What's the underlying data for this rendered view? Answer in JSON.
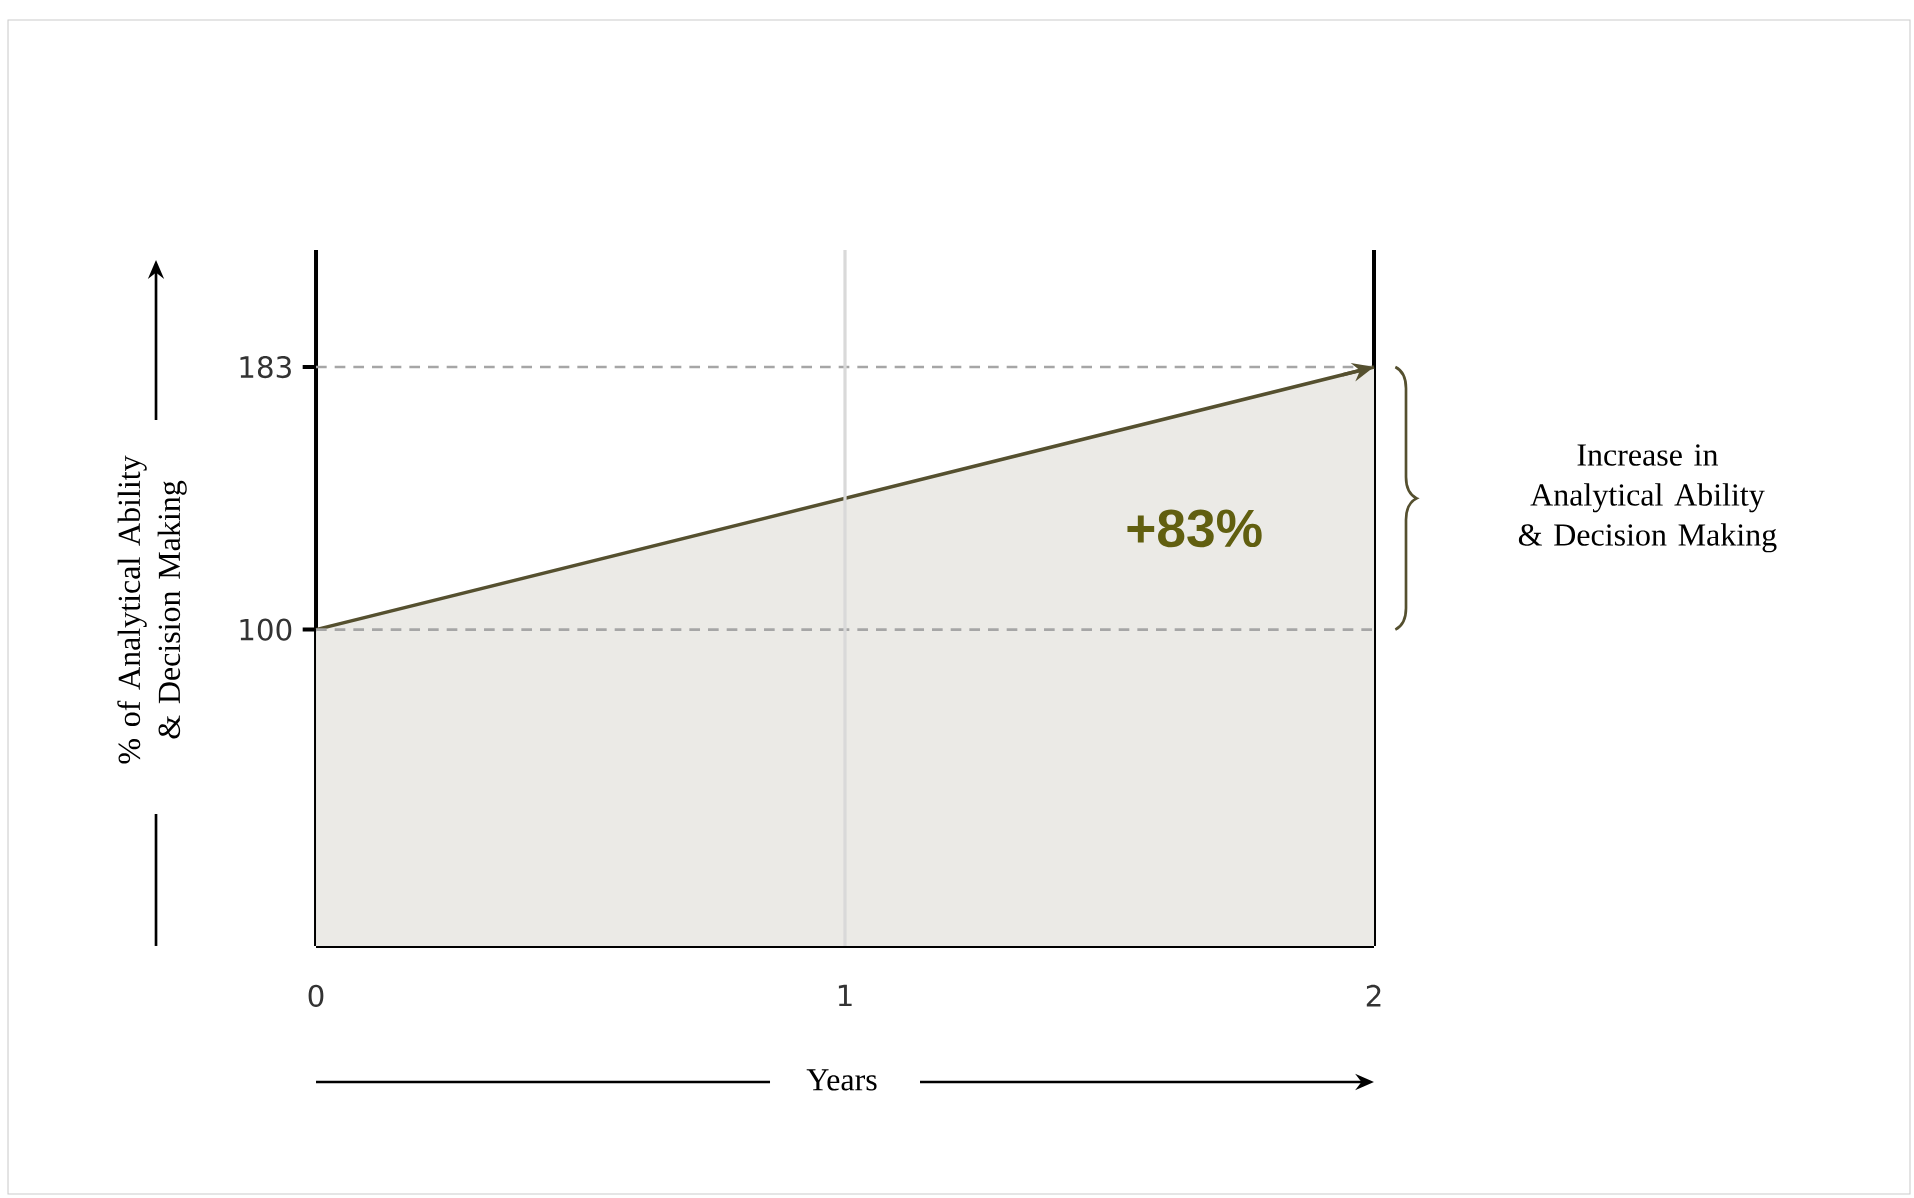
{
  "chart_data": {
    "type": "area",
    "xlabel": "Years",
    "ylabel": "% of Analytical Ability & Decision Making",
    "x": [
      0,
      2
    ],
    "series": [
      {
        "color": "#55502f",
        "values": [
          100,
          183
        ]
      }
    ],
    "xlim": [
      0,
      2
    ],
    "ylim": [
      0,
      220
    ],
    "xticks": [
      0,
      1,
      2
    ],
    "yticks": [
      100,
      183
    ],
    "ref_lines": [
      {
        "axis": "y",
        "value": 100,
        "color": "#a6a6a6",
        "line_style": "dashed"
      },
      {
        "axis": "y",
        "value": 183,
        "color": "#a6a6a6",
        "line_style": "dashed"
      },
      {
        "axis": "x",
        "value": 1,
        "color": "#d9d9d9",
        "line_style": "solid"
      }
    ],
    "annotations": [
      "+83%",
      "Increase in Analytical Ability & Decision Making"
    ]
  }
}
